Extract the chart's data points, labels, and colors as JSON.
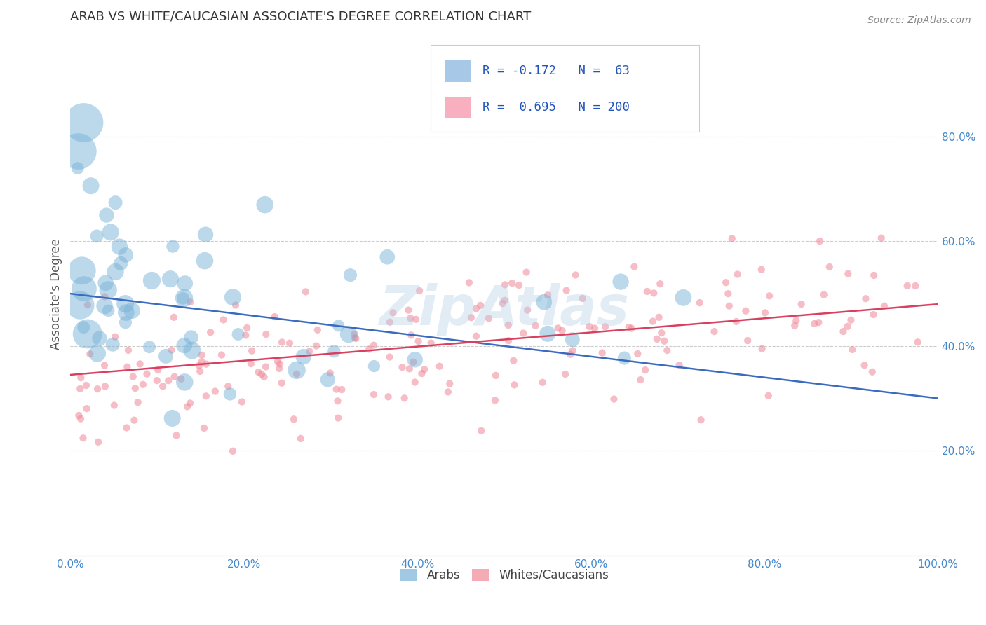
{
  "title": "ARAB VS WHITE/CAUCASIAN ASSOCIATE'S DEGREE CORRELATION CHART",
  "source": "Source: ZipAtlas.com",
  "ylabel": "Associate's Degree",
  "xlim": [
    0,
    1
  ],
  "ylim": [
    0,
    1
  ],
  "xticks": [
    0.0,
    0.2,
    0.4,
    0.6,
    0.8,
    1.0
  ],
  "xticklabels": [
    "0.0%",
    "20.0%",
    "40.0%",
    "60.0%",
    "80.0%",
    "100.0%"
  ],
  "yticks": [
    0.2,
    0.4,
    0.6,
    0.8
  ],
  "yticklabels": [
    "20.0%",
    "40.0%",
    "60.0%",
    "80.0%"
  ],
  "arab_color": "#7ab3d9",
  "white_color": "#f08898",
  "arab_line_color": "#3a6bbf",
  "white_line_color": "#d94060",
  "watermark": "ZipAtlas",
  "background_color": "#ffffff",
  "grid_color": "#cccccc",
  "title_color": "#333333",
  "axis_label_color": "#555555",
  "tick_color": "#4488cc",
  "arab_line_start_y": 0.5,
  "arab_line_end_y": 0.3,
  "white_line_start_y": 0.345,
  "white_line_end_y": 0.48,
  "legend_arab_color": "#a8c8e8",
  "legend_white_color": "#f8b0c0"
}
